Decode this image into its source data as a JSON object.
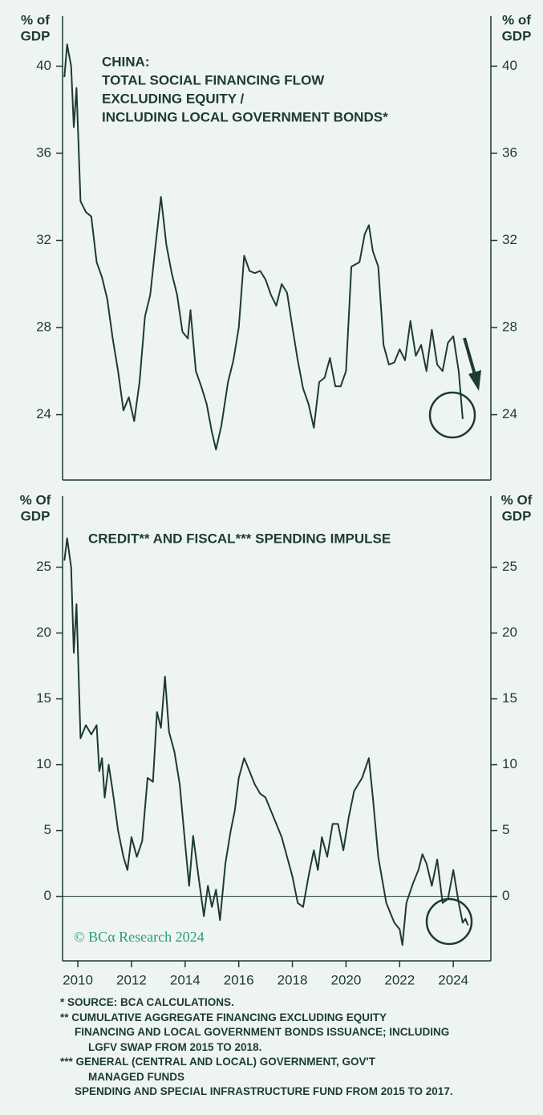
{
  "chart_data": [
    {
      "type": "line",
      "title": [
        "CHINA:",
        "TOTAL SOCIAL FINANCING FLOW",
        "EXCLUDING EQUITY /",
        "INCLUDING LOCAL GOVERNMENT BONDS*"
      ],
      "ylabel": [
        "% of",
        "GDP"
      ],
      "xlim": [
        2009.43,
        2025.4
      ],
      "ylim": [
        21,
        42.3
      ],
      "yticks": [
        24,
        28,
        32,
        36,
        40
      ],
      "x": [
        2009.5,
        2009.6,
        2009.75,
        2009.85,
        2009.95,
        2010.1,
        2010.3,
        2010.5,
        2010.7,
        2010.9,
        2011.1,
        2011.3,
        2011.5,
        2011.7,
        2011.9,
        2012.1,
        2012.3,
        2012.5,
        2012.7,
        2012.9,
        2013.1,
        2013.3,
        2013.5,
        2013.7,
        2013.9,
        2014.1,
        2014.2,
        2014.4,
        2014.6,
        2014.8,
        2015.0,
        2015.15,
        2015.35,
        2015.6,
        2015.8,
        2016.0,
        2016.2,
        2016.4,
        2016.6,
        2016.8,
        2017.0,
        2017.2,
        2017.4,
        2017.6,
        2017.8,
        2018.0,
        2018.2,
        2018.4,
        2018.6,
        2018.8,
        2019.0,
        2019.2,
        2019.4,
        2019.6,
        2019.8,
        2020.0,
        2020.2,
        2020.5,
        2020.7,
        2020.85,
        2021.0,
        2021.2,
        2021.4,
        2021.6,
        2021.8,
        2022.0,
        2022.2,
        2022.4,
        2022.6,
        2022.8,
        2023.0,
        2023.2,
        2023.4,
        2023.6,
        2023.8,
        2024.0,
        2024.2,
        2024.35
      ],
      "series": [
        {
          "color": "#1d3a33",
          "values": [
            39.5,
            41,
            40,
            37.2,
            39,
            33.8,
            33.3,
            33.1,
            31.0,
            30.3,
            29.3,
            27.5,
            26.0,
            24.2,
            24.8,
            23.7,
            25.5,
            28.5,
            29.5,
            31.8,
            34.0,
            31.8,
            30.5,
            29.5,
            27.8,
            27.5,
            28.8,
            26.0,
            25.3,
            24.5,
            23.2,
            22.4,
            23.5,
            25.5,
            26.5,
            28.0,
            31.3,
            30.6,
            30.5,
            30.6,
            30.2,
            29.5,
            29.0,
            30.0,
            29.6,
            28.0,
            26.5,
            25.2,
            24.5,
            23.4,
            25.5,
            25.7,
            26.6,
            25.3,
            25.3,
            26.0,
            30.8,
            31.0,
            32.3,
            32.7,
            31.5,
            30.8,
            27.2,
            26.3,
            26.4,
            27.0,
            26.5,
            28.3,
            26.7,
            27.2,
            26.0,
            27.9,
            26.3,
            26.0,
            27.3,
            27.6,
            26.0,
            23.8
          ]
        }
      ]
    },
    {
      "type": "line",
      "title": [
        "CREDIT** AND FISCAL*** SPENDING IMPULSE"
      ],
      "ylabel": [
        "% Of",
        "GDP"
      ],
      "source": "© BCα Research 2024",
      "xlim": [
        2009.43,
        2025.4
      ],
      "ylim": [
        -4.9,
        30.4
      ],
      "yticks": [
        0,
        5,
        10,
        15,
        20,
        25
      ],
      "xticks": [
        2010,
        2012,
        2014,
        2016,
        2018,
        2020,
        2022,
        2024
      ],
      "zero_line": true,
      "x": [
        2009.5,
        2009.6,
        2009.75,
        2009.85,
        2009.95,
        2010.1,
        2010.3,
        2010.5,
        2010.7,
        2010.8,
        2010.9,
        2011.0,
        2011.15,
        2011.3,
        2011.5,
        2011.7,
        2011.85,
        2012.0,
        2012.2,
        2012.4,
        2012.6,
        2012.8,
        2012.95,
        2013.1,
        2013.25,
        2013.4,
        2013.6,
        2013.8,
        2014.0,
        2014.15,
        2014.3,
        2014.5,
        2014.7,
        2014.85,
        2015.0,
        2015.15,
        2015.3,
        2015.5,
        2015.7,
        2015.85,
        2016.0,
        2016.2,
        2016.4,
        2016.6,
        2016.8,
        2017.0,
        2017.2,
        2017.4,
        2017.6,
        2017.8,
        2018.0,
        2018.2,
        2018.4,
        2018.6,
        2018.8,
        2018.95,
        2019.1,
        2019.3,
        2019.5,
        2019.7,
        2019.9,
        2020.1,
        2020.3,
        2020.6,
        2020.85,
        2021.0,
        2021.2,
        2021.5,
        2021.8,
        2022.0,
        2022.1,
        2022.25,
        2022.5,
        2022.7,
        2022.85,
        2023.0,
        2023.2,
        2023.4,
        2023.6,
        2023.8,
        2024.0,
        2024.2,
        2024.35,
        2024.45,
        2024.55
      ],
      "series": [
        {
          "color": "#1d3a33",
          "values": [
            25.5,
            27.2,
            25,
            18.5,
            22.2,
            12.0,
            13.0,
            12.3,
            13.0,
            9.5,
            10.5,
            7.5,
            10.0,
            8.0,
            5.0,
            3.0,
            2.0,
            4.5,
            3.0,
            4.2,
            9.0,
            8.7,
            14.0,
            12.8,
            16.7,
            12.5,
            11.0,
            8.5,
            4.0,
            0.8,
            4.6,
            1.5,
            -1.5,
            0.8,
            -0.8,
            0.5,
            -1.8,
            2.5,
            5.0,
            6.5,
            9.0,
            10.5,
            9.5,
            8.5,
            7.8,
            7.5,
            6.5,
            5.5,
            4.5,
            3.0,
            1.5,
            -0.5,
            -0.8,
            1.5,
            3.5,
            2.0,
            4.5,
            3.0,
            5.5,
            5.5,
            3.5,
            6.0,
            8.0,
            9.0,
            10.5,
            7.5,
            3.0,
            -0.5,
            -2.0,
            -2.5,
            -3.7,
            -0.5,
            1.0,
            2.0,
            3.2,
            2.5,
            0.8,
            2.8,
            -0.5,
            -0.2,
            2.0,
            -0.5,
            -2.0,
            -1.7,
            -2.2
          ]
        }
      ]
    }
  ],
  "footnotes": [
    "*  SOURCE: BCA CALCULATIONS.",
    "**  CUMULATIVE AGGREGATE FINANCING EXCLUDING EQUITY",
    "FINANCING AND LOCAL GOVERNMENT BONDS ISSUANCE; INCLUDING",
    "LGFV SWAP FROM 2015 TO 2018.",
    "***  GENERAL (CENTRAL AND LOCAL) GOVERNMENT, GOV'T",
    "MANAGED FUNDS",
    "SPENDING AND SPECIAL INFRASTRUCTURE FUND FROM 2015 TO 2017."
  ]
}
